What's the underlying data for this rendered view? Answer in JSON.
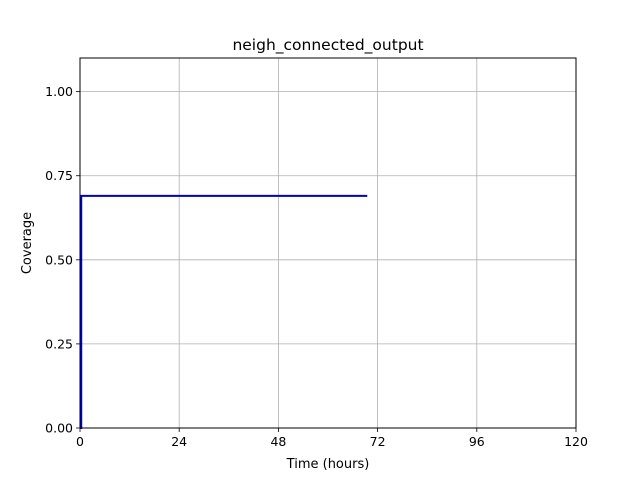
{
  "chart_data": {
    "type": "line",
    "title": "neigh_connected_output",
    "xlabel": "Time (hours)",
    "ylabel": "Coverage",
    "xlim": [
      0,
      120
    ],
    "ylim": [
      0,
      1.1
    ],
    "xticks": [
      0,
      24,
      48,
      72,
      96,
      120
    ],
    "xtick_labels": [
      "0",
      "24",
      "48",
      "72",
      "96",
      "120"
    ],
    "yticks": [
      0.0,
      0.25,
      0.5,
      0.75,
      1.0
    ],
    "ytick_labels": [
      "0.00",
      "0.25",
      "0.50",
      "0.75",
      "1.00"
    ],
    "grid": true,
    "legend": "none",
    "series": [
      {
        "color": "#0000cc",
        "step": true,
        "x": [
          0,
          0.3,
          0.3,
          69.5
        ],
        "y": [
          0.0,
          0.0,
          0.69,
          0.69
        ]
      }
    ]
  }
}
